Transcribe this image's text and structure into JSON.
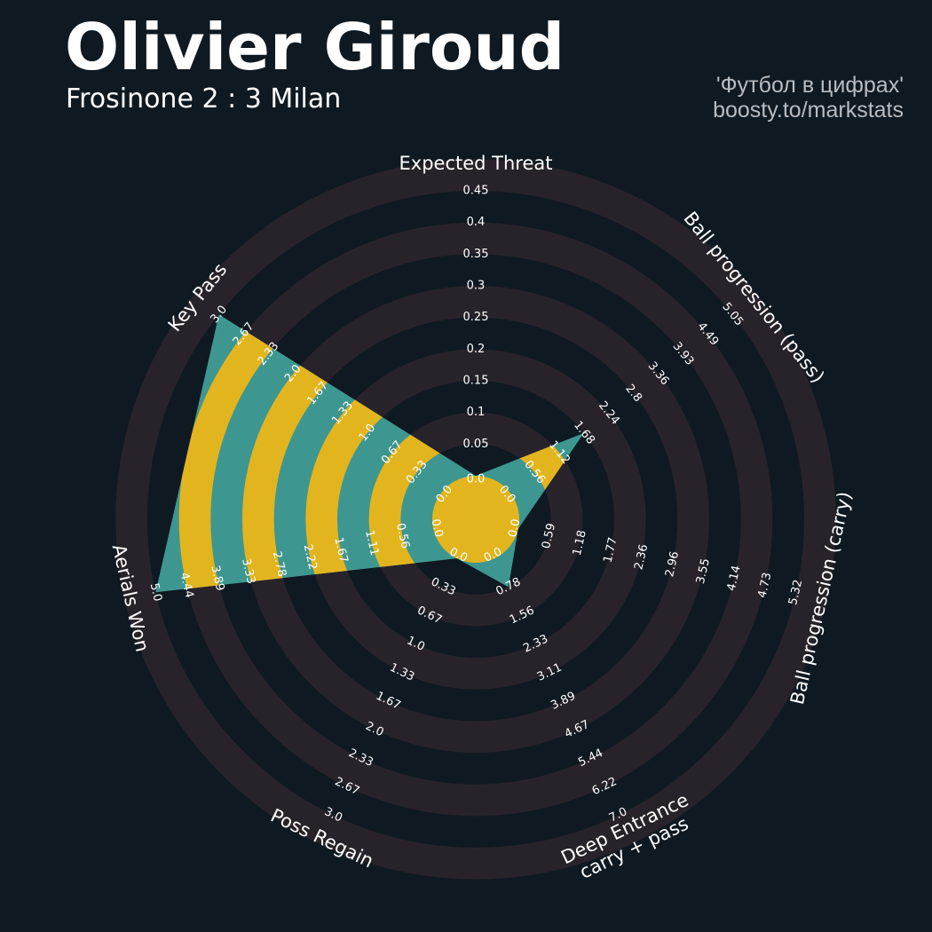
{
  "header": {
    "title": "Olivier Giroud",
    "subtitle": "Frosinone 2 : 3 Milan",
    "credit_line1": "'Футбол в цифрах'",
    "credit_line2": "boosty.to/markstats"
  },
  "colors": {
    "background": "#0f1921",
    "ring_band": "#28232a",
    "fill_teal": "#3e9690",
    "fill_gold": "#e2b51f",
    "text": "#ffffff"
  },
  "chart_data": {
    "type": "radar",
    "title": "Olivier Giroud",
    "subtitle": "Frosinone 2 : 3 Milan",
    "parameters": [
      {
        "label": "Expected Threat",
        "value": 0.0,
        "ticks": [
          "0.0",
          "0.05",
          "0.1",
          "0.15",
          "0.2",
          "0.25",
          "0.3",
          "0.35",
          "0.4",
          "0.45"
        ]
      },
      {
        "label": "Ball progression (pass)",
        "value": 1.68,
        "ticks": [
          "0.0",
          "0.56",
          "1.12",
          "1.68",
          "2.24",
          "2.8",
          "3.36",
          "3.93",
          "4.49",
          "5.05"
        ]
      },
      {
        "label": "Ball progression (carry)",
        "value": 0.0,
        "ticks": [
          "0.0",
          "0.59",
          "1.18",
          "1.77",
          "2.36",
          "2.96",
          "3.55",
          "4.14",
          "4.73",
          "5.32"
        ]
      },
      {
        "label": "Deep Entrance\ncarry + pass",
        "value": 0.78,
        "ticks": [
          "0.0",
          "0.78",
          "1.56",
          "2.33",
          "3.11",
          "3.89",
          "4.67",
          "5.44",
          "6.22",
          "7.0"
        ]
      },
      {
        "label": "Poss Regain",
        "value": 0.0,
        "ticks": [
          "0.0",
          "0.33",
          "0.67",
          "1.0",
          "1.33",
          "1.67",
          "2.0",
          "2.33",
          "2.67",
          "3.0"
        ]
      },
      {
        "label": "Aerials Won",
        "value": 5.0,
        "ticks": [
          "0.0",
          "0.56",
          "1.11",
          "1.67",
          "2.22",
          "2.78",
          "3.33",
          "3.89",
          "4.44",
          "5.0"
        ]
      },
      {
        "label": "Key Pass",
        "value": 3.0,
        "ticks": [
          "0.0",
          "0.33",
          "0.67",
          "1.0",
          "1.33",
          "1.67",
          "2.0",
          "2.33",
          "2.67",
          "3.0"
        ]
      }
    ]
  }
}
